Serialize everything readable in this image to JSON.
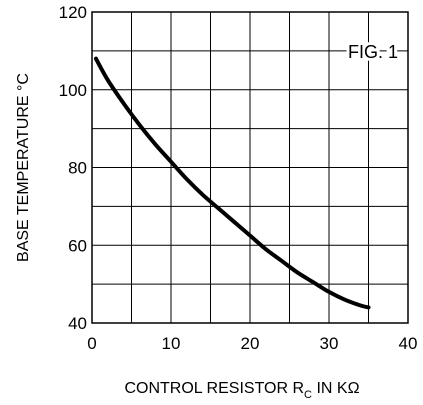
{
  "chart_data": {
    "type": "line",
    "title": "",
    "annotation": "FIG. 1",
    "xlabel": {
      "main": "CONTROL RESISTOR R",
      "subscript": "C",
      "suffix": " IN KΩ"
    },
    "ylabel": "BASE TEMPERATURE °C",
    "xlim": [
      0,
      40
    ],
    "ylim": [
      40,
      120
    ],
    "xticks": [
      "0",
      "10",
      "20",
      "30",
      "40"
    ],
    "yticks": [
      "40",
      "60",
      "80",
      "100",
      "120"
    ],
    "grid": true,
    "grid_x_step": 5,
    "grid_y_step": 10,
    "series": [
      {
        "x": [
          0.5,
          2,
          4,
          6,
          8,
          10,
          12,
          14,
          16,
          18,
          20,
          22,
          24,
          26,
          28,
          30,
          32,
          34,
          35
        ],
        "y": [
          108,
          102.5,
          96.5,
          91,
          86,
          81.5,
          77,
          73,
          69.5,
          66,
          62.5,
          59,
          56,
          53,
          50.5,
          48,
          46,
          44.5,
          44
        ]
      }
    ]
  }
}
